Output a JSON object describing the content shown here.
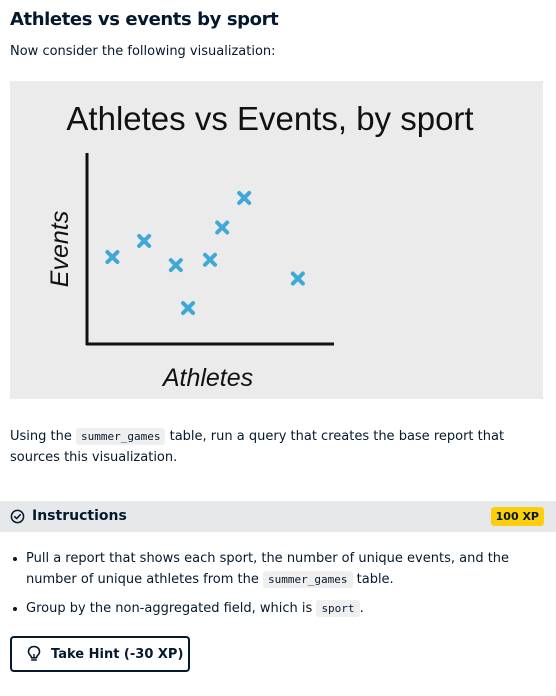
{
  "page": {
    "title": "Athletes vs events by sport",
    "intro": "Now consider the following visualization:"
  },
  "chart_data": {
    "type": "scatter",
    "title": "Athletes vs Events, by sport",
    "xlabel": "Athletes",
    "ylabel": "Events",
    "marker": "x",
    "marker_color": "#3fa8d8",
    "ticks": false,
    "grid": false,
    "points": [
      {
        "x": 1.0,
        "y": 3.2
      },
      {
        "x": 2.3,
        "y": 3.8
      },
      {
        "x": 3.6,
        "y": 2.9
      },
      {
        "x": 4.1,
        "y": 1.3
      },
      {
        "x": 5.0,
        "y": 3.1
      },
      {
        "x": 5.5,
        "y": 4.3
      },
      {
        "x": 6.4,
        "y": 5.4
      },
      {
        "x": 8.6,
        "y": 2.4
      }
    ],
    "xlim": [
      0,
      10
    ],
    "ylim": [
      0,
      7
    ]
  },
  "paragraph": {
    "before": "Using the ",
    "code": "summer_games",
    "after": " table, run a query that creates the base report that sources this visualization."
  },
  "instructions": {
    "label": "Instructions",
    "xp": "100 XP",
    "items": [
      {
        "before": "Pull a report that shows each sport, the number of unique events, and the number of unique athletes from the ",
        "code": "summer_games",
        "after": " table."
      },
      {
        "before": "Group by the non-aggregated field, which is ",
        "code": "sport",
        "after": "."
      }
    ]
  },
  "hint": {
    "label": "Take Hint (-30 XP)"
  }
}
